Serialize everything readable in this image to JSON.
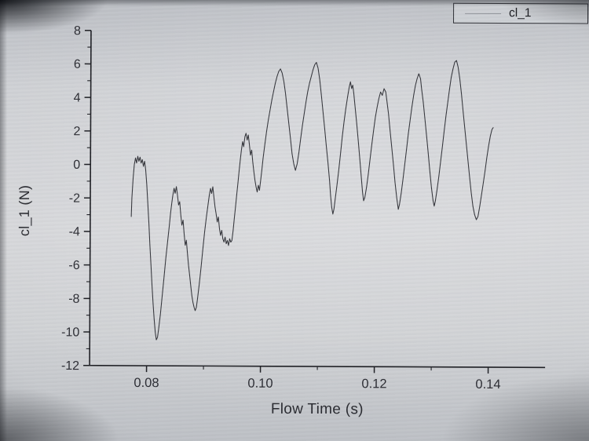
{
  "legend": {
    "label": "cl_1"
  },
  "chart_data": {
    "type": "line",
    "title": "",
    "xlabel": "Flow Time (s)",
    "ylabel": "cl_1 (N)",
    "xlim": [
      0.07,
      0.15
    ],
    "ylim": [
      -12,
      8
    ],
    "x_ticks": [
      0.08,
      0.1,
      0.12,
      0.14
    ],
    "x_tick_labels": [
      "0.08",
      "0.10",
      "0.12",
      "0.14"
    ],
    "x_minor_ticks": [
      0.09,
      0.11,
      0.13
    ],
    "y_ticks": [
      8,
      6,
      4,
      2,
      0,
      -2,
      -4,
      -6,
      -8,
      -10,
      -12
    ],
    "y_tick_labels": [
      "8",
      "6",
      "4",
      "2",
      "0",
      "-2",
      "-4",
      "-6",
      "-8",
      "-10",
      "-12"
    ],
    "y_minor_ticks": [
      7,
      5,
      3,
      1,
      -1,
      -3,
      -5,
      -7,
      -9,
      -11
    ],
    "grid": false,
    "legend_position": "top-right",
    "axis_color": "#1b1c21",
    "text_color": "#202128",
    "series": [
      {
        "name": "cl_1",
        "color": "#2f3036",
        "points": [
          [
            0.0772,
            -3.1
          ],
          [
            0.0773,
            -2.0
          ],
          [
            0.0775,
            -0.8
          ],
          [
            0.0777,
            0.0
          ],
          [
            0.0779,
            0.4
          ],
          [
            0.0781,
            0.1
          ],
          [
            0.0783,
            0.5
          ],
          [
            0.0785,
            0.2
          ],
          [
            0.0787,
            0.45
          ],
          [
            0.0789,
            0.1
          ],
          [
            0.0791,
            0.3
          ],
          [
            0.0793,
            -0.1
          ],
          [
            0.0795,
            0.2
          ],
          [
            0.0797,
            -0.3
          ],
          [
            0.0799,
            -1.2
          ],
          [
            0.0801,
            -2.3
          ],
          [
            0.0803,
            -3.5
          ],
          [
            0.0805,
            -4.8
          ],
          [
            0.0807,
            -6.0
          ],
          [
            0.0809,
            -7.2
          ],
          [
            0.0811,
            -8.3
          ],
          [
            0.0813,
            -9.2
          ],
          [
            0.0815,
            -10.0
          ],
          [
            0.0817,
            -10.45
          ],
          [
            0.0819,
            -10.3
          ],
          [
            0.0821,
            -9.8
          ],
          [
            0.0824,
            -8.9
          ],
          [
            0.0827,
            -7.8
          ],
          [
            0.083,
            -6.7
          ],
          [
            0.0833,
            -5.6
          ],
          [
            0.0836,
            -4.6
          ],
          [
            0.0839,
            -3.6
          ],
          [
            0.0841,
            -2.9
          ],
          [
            0.0843,
            -2.3
          ],
          [
            0.0845,
            -1.8
          ],
          [
            0.0847,
            -1.4
          ],
          [
            0.0849,
            -1.7
          ],
          [
            0.0851,
            -1.3
          ],
          [
            0.0853,
            -1.8
          ],
          [
            0.0855,
            -2.4
          ],
          [
            0.0857,
            -2.2
          ],
          [
            0.0859,
            -3.0
          ],
          [
            0.0861,
            -3.6
          ],
          [
            0.0863,
            -3.3
          ],
          [
            0.0865,
            -4.1
          ],
          [
            0.0867,
            -4.8
          ],
          [
            0.0869,
            -4.5
          ],
          [
            0.0871,
            -5.3
          ],
          [
            0.0873,
            -6.0
          ],
          [
            0.0875,
            -6.6
          ],
          [
            0.0877,
            -7.2
          ],
          [
            0.0879,
            -7.8
          ],
          [
            0.0881,
            -8.2
          ],
          [
            0.0883,
            -8.5
          ],
          [
            0.0885,
            -8.7
          ],
          [
            0.0887,
            -8.5
          ],
          [
            0.0889,
            -8.0
          ],
          [
            0.0892,
            -7.1
          ],
          [
            0.0895,
            -6.1
          ],
          [
            0.0898,
            -5.0
          ],
          [
            0.0901,
            -4.0
          ],
          [
            0.0904,
            -3.1
          ],
          [
            0.0907,
            -2.3
          ],
          [
            0.0909,
            -1.8
          ],
          [
            0.0911,
            -1.4
          ],
          [
            0.0913,
            -1.7
          ],
          [
            0.0915,
            -1.3
          ],
          [
            0.0917,
            -1.9
          ],
          [
            0.0919,
            -2.5
          ],
          [
            0.0921,
            -2.9
          ],
          [
            0.0923,
            -3.4
          ],
          [
            0.0925,
            -3.1
          ],
          [
            0.0927,
            -3.8
          ],
          [
            0.0929,
            -4.2
          ],
          [
            0.0931,
            -3.9
          ],
          [
            0.0933,
            -4.4
          ],
          [
            0.0935,
            -4.6
          ],
          [
            0.0937,
            -4.3
          ],
          [
            0.0939,
            -4.7
          ],
          [
            0.0941,
            -4.5
          ],
          [
            0.0943,
            -4.8
          ],
          [
            0.0945,
            -4.4
          ],
          [
            0.0947,
            -4.6
          ],
          [
            0.0949,
            -4.5
          ],
          [
            0.0951,
            -3.9
          ],
          [
            0.0953,
            -3.2
          ],
          [
            0.0955,
            -2.5
          ],
          [
            0.0957,
            -1.8
          ],
          [
            0.0959,
            -1.1
          ],
          [
            0.0961,
            -0.4
          ],
          [
            0.0963,
            0.3
          ],
          [
            0.0965,
            0.9
          ],
          [
            0.0967,
            1.4
          ],
          [
            0.0969,
            1.1
          ],
          [
            0.0971,
            1.7
          ],
          [
            0.0973,
            1.9
          ],
          [
            0.0975,
            1.5
          ],
          [
            0.0977,
            1.8
          ],
          [
            0.0979,
            1.2
          ],
          [
            0.0981,
            0.6
          ],
          [
            0.0983,
            0.9
          ],
          [
            0.0985,
            0.2
          ],
          [
            0.0987,
            -0.4
          ],
          [
            0.0989,
            -0.9
          ],
          [
            0.0991,
            -1.3
          ],
          [
            0.0993,
            -1.6
          ],
          [
            0.0995,
            -1.2
          ],
          [
            0.0997,
            -1.5
          ],
          [
            0.0999,
            -0.9
          ],
          [
            0.1001,
            -0.3
          ],
          [
            0.1003,
            0.4
          ],
          [
            0.1006,
            1.2
          ],
          [
            0.1009,
            2.0
          ],
          [
            0.1012,
            2.7
          ],
          [
            0.1015,
            3.3
          ],
          [
            0.1018,
            3.9
          ],
          [
            0.1021,
            4.4
          ],
          [
            0.1024,
            4.9
          ],
          [
            0.1027,
            5.3
          ],
          [
            0.103,
            5.6
          ],
          [
            0.1033,
            5.75
          ],
          [
            0.1036,
            5.5
          ],
          [
            0.1039,
            5.0
          ],
          [
            0.1042,
            4.3
          ],
          [
            0.1045,
            3.4
          ],
          [
            0.1048,
            2.5
          ],
          [
            0.1051,
            1.6
          ],
          [
            0.1054,
            0.7
          ],
          [
            0.1057,
            0.1
          ],
          [
            0.106,
            -0.3
          ],
          [
            0.1063,
            0.1
          ],
          [
            0.1066,
            0.8
          ],
          [
            0.1069,
            1.6
          ],
          [
            0.1072,
            2.4
          ],
          [
            0.1075,
            3.1
          ],
          [
            0.1078,
            3.8
          ],
          [
            0.1081,
            4.4
          ],
          [
            0.1084,
            4.9
          ],
          [
            0.1087,
            5.3
          ],
          [
            0.109,
            5.7
          ],
          [
            0.1093,
            6.0
          ],
          [
            0.1096,
            6.15
          ],
          [
            0.1099,
            5.8
          ],
          [
            0.1102,
            5.1
          ],
          [
            0.1105,
            4.2
          ],
          [
            0.1108,
            3.2
          ],
          [
            0.1111,
            2.2
          ],
          [
            0.1114,
            1.2
          ],
          [
            0.1117,
            0.2
          ],
          [
            0.112,
            -0.9
          ],
          [
            0.1122,
            -1.8
          ],
          [
            0.1124,
            -2.5
          ],
          [
            0.1126,
            -2.9
          ],
          [
            0.1128,
            -2.6
          ],
          [
            0.113,
            -2.0
          ],
          [
            0.1133,
            -1.2
          ],
          [
            0.1136,
            -0.3
          ],
          [
            0.1139,
            0.7
          ],
          [
            0.1142,
            1.7
          ],
          [
            0.1145,
            2.6
          ],
          [
            0.1148,
            3.4
          ],
          [
            0.1151,
            4.1
          ],
          [
            0.1154,
            4.7
          ],
          [
            0.1156,
            5.0
          ],
          [
            0.1158,
            4.6
          ],
          [
            0.116,
            4.8
          ],
          [
            0.1162,
            4.3
          ],
          [
            0.1164,
            3.6
          ],
          [
            0.1167,
            2.6
          ],
          [
            0.117,
            1.5
          ],
          [
            0.1173,
            0.4
          ],
          [
            0.1176,
            -0.8
          ],
          [
            0.1178,
            -1.6
          ],
          [
            0.118,
            -2.1
          ],
          [
            0.1182,
            -1.9
          ],
          [
            0.1185,
            -1.3
          ],
          [
            0.1188,
            -0.5
          ],
          [
            0.1191,
            0.4
          ],
          [
            0.1194,
            1.3
          ],
          [
            0.1197,
            2.1
          ],
          [
            0.12,
            2.9
          ],
          [
            0.1203,
            3.5
          ],
          [
            0.1206,
            4.0
          ],
          [
            0.1209,
            4.4
          ],
          [
            0.1212,
            4.2
          ],
          [
            0.1215,
            4.6
          ],
          [
            0.1218,
            4.4
          ],
          [
            0.122,
            3.9
          ],
          [
            0.1223,
            3.1
          ],
          [
            0.1226,
            2.1
          ],
          [
            0.1229,
            1.1
          ],
          [
            0.1232,
            0.1
          ],
          [
            0.1235,
            -1.0
          ],
          [
            0.1238,
            -1.9
          ],
          [
            0.1241,
            -2.6
          ],
          [
            0.1243,
            -2.3
          ],
          [
            0.1246,
            -1.6
          ],
          [
            0.1249,
            -0.8
          ],
          [
            0.1252,
            0.1
          ],
          [
            0.1255,
            1.0
          ],
          [
            0.1258,
            1.9
          ],
          [
            0.1261,
            2.7
          ],
          [
            0.1264,
            3.5
          ],
          [
            0.1267,
            4.2
          ],
          [
            0.127,
            4.8
          ],
          [
            0.1273,
            5.2
          ],
          [
            0.1276,
            5.5
          ],
          [
            0.1279,
            5.2
          ],
          [
            0.1281,
            4.6
          ],
          [
            0.1284,
            3.8
          ],
          [
            0.1287,
            2.8
          ],
          [
            0.129,
            1.8
          ],
          [
            0.1293,
            0.8
          ],
          [
            0.1296,
            -0.3
          ],
          [
            0.1299,
            -1.3
          ],
          [
            0.1302,
            -2.1
          ],
          [
            0.1304,
            -2.4
          ],
          [
            0.1306,
            -2.1
          ],
          [
            0.1309,
            -1.4
          ],
          [
            0.1312,
            -0.6
          ],
          [
            0.1315,
            0.3
          ],
          [
            0.1318,
            1.2
          ],
          [
            0.1321,
            2.1
          ],
          [
            0.1324,
            3.0
          ],
          [
            0.1327,
            3.8
          ],
          [
            0.133,
            4.6
          ],
          [
            0.1333,
            5.3
          ],
          [
            0.1336,
            5.8
          ],
          [
            0.1339,
            6.2
          ],
          [
            0.1342,
            6.3
          ],
          [
            0.1345,
            5.9
          ],
          [
            0.1348,
            5.2
          ],
          [
            0.1351,
            4.3
          ],
          [
            0.1354,
            3.3
          ],
          [
            0.1357,
            2.3
          ],
          [
            0.136,
            1.3
          ],
          [
            0.1363,
            0.3
          ],
          [
            0.1366,
            -0.7
          ],
          [
            0.1369,
            -1.6
          ],
          [
            0.1372,
            -2.4
          ],
          [
            0.1375,
            -2.9
          ],
          [
            0.1378,
            -3.2
          ],
          [
            0.1381,
            -3.0
          ],
          [
            0.1384,
            -2.4
          ],
          [
            0.1387,
            -1.7
          ],
          [
            0.139,
            -1.0
          ],
          [
            0.1393,
            -0.3
          ],
          [
            0.1396,
            0.5
          ],
          [
            0.1399,
            1.2
          ],
          [
            0.1402,
            1.8
          ],
          [
            0.1405,
            2.2
          ],
          [
            0.1407,
            2.3
          ]
        ]
      }
    ]
  }
}
